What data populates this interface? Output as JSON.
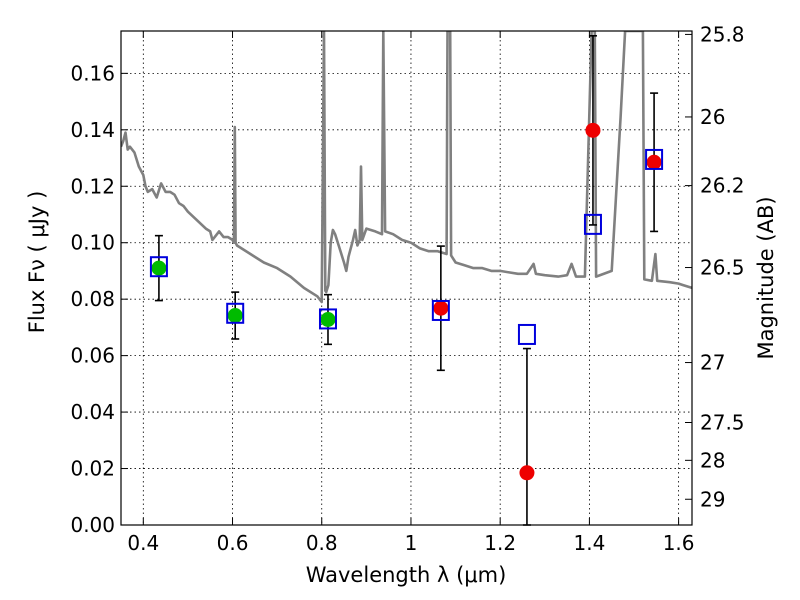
{
  "chart_data": {
    "type": "scatter",
    "xlabel": "Wavelength  λ (μm)",
    "ylabel": "Flux  Fν  ( μJy )",
    "y2label": "Magnitude (AB)",
    "xlim": [
      0.35,
      1.63
    ],
    "ylim": [
      0.0,
      0.175
    ],
    "xticks": [
      0.4,
      0.6,
      0.8,
      1.0,
      1.2,
      1.4,
      1.6
    ],
    "xtick_labels": [
      "0.4",
      "0.6",
      "0.8",
      "1",
      "1.2",
      "1.4",
      "1.6"
    ],
    "yticks": [
      0.0,
      0.02,
      0.04,
      0.06,
      0.08,
      0.1,
      0.12,
      0.14,
      0.16
    ],
    "ytick_labels": [
      "0.00",
      "0.02",
      "0.04",
      "0.06",
      "0.08",
      "0.10",
      "0.12",
      "0.14",
      "0.16"
    ],
    "y2ticks": [
      {
        "label": "25.8",
        "mag": 25.8
      },
      {
        "label": "26",
        "mag": 26.0
      },
      {
        "label": "26.2",
        "mag": 26.2
      },
      {
        "label": "26.5",
        "mag": 26.5
      },
      {
        "label": "27",
        "mag": 27.0
      },
      {
        "label": "27.5",
        "mag": 27.5
      },
      {
        "label": "28",
        "mag": 28.0
      },
      {
        "label": "29",
        "mag": 29.0
      }
    ],
    "grid": true,
    "series": [
      {
        "marker": "circle",
        "color": "#00bb00",
        "points": [
          {
            "x": 0.435,
            "y": 0.091,
            "err": 0.0115
          },
          {
            "x": 0.606,
            "y": 0.0742,
            "err": 0.0083
          },
          {
            "x": 0.814,
            "y": 0.0728,
            "err": 0.0088
          }
        ]
      },
      {
        "marker": "circle",
        "color": "#ee0000",
        "points": [
          {
            "x": 1.067,
            "y": 0.0768,
            "err": 0.022
          },
          {
            "x": 1.26,
            "y": 0.0185,
            "err": 0.044
          },
          {
            "x": 1.408,
            "y": 0.1398,
            "err": 0.0335
          },
          {
            "x": 1.545,
            "y": 0.1285,
            "err": 0.0245
          }
        ]
      },
      {
        "marker": "open-square",
        "color": "#0000dd",
        "points": [
          {
            "x": 0.435,
            "y": 0.0915
          },
          {
            "x": 0.606,
            "y": 0.075
          },
          {
            "x": 0.814,
            "y": 0.073
          },
          {
            "x": 1.067,
            "y": 0.076
          },
          {
            "x": 1.26,
            "y": 0.0675
          },
          {
            "x": 1.408,
            "y": 0.1065
          },
          {
            "x": 1.545,
            "y": 0.1295
          }
        ]
      }
    ],
    "model_spectrum": {
      "color": "#808080",
      "points": [
        [
          0.35,
          0.134
        ],
        [
          0.355,
          0.136
        ],
        [
          0.36,
          0.139
        ],
        [
          0.365,
          0.133
        ],
        [
          0.37,
          0.134
        ],
        [
          0.38,
          0.132
        ],
        [
          0.39,
          0.127
        ],
        [
          0.4,
          0.124
        ],
        [
          0.405,
          0.12
        ],
        [
          0.41,
          0.118
        ],
        [
          0.42,
          0.119
        ],
        [
          0.43,
          0.116
        ],
        [
          0.44,
          0.121
        ],
        [
          0.45,
          0.118
        ],
        [
          0.46,
          0.118
        ],
        [
          0.47,
          0.117
        ],
        [
          0.48,
          0.114
        ],
        [
          0.49,
          0.113
        ],
        [
          0.5,
          0.111
        ],
        [
          0.52,
          0.108
        ],
        [
          0.54,
          0.105
        ],
        [
          0.55,
          0.104
        ],
        [
          0.555,
          0.101
        ],
        [
          0.56,
          0.102
        ],
        [
          0.57,
          0.104
        ],
        [
          0.58,
          0.102
        ],
        [
          0.59,
          0.102
        ],
        [
          0.6,
          0.101
        ],
        [
          0.603,
          0.1
        ],
        [
          0.605,
          0.141
        ],
        [
          0.607,
          0.1
        ],
        [
          0.61,
          0.099
        ],
        [
          0.64,
          0.096
        ],
        [
          0.67,
          0.093
        ],
        [
          0.7,
          0.091
        ],
        [
          0.73,
          0.088
        ],
        [
          0.76,
          0.084
        ],
        [
          0.79,
          0.081
        ],
        [
          0.8,
          0.079
        ],
        [
          0.805,
          0.175
        ],
        [
          0.808,
          0.083
        ],
        [
          0.81,
          0.0825
        ],
        [
          0.815,
          0.085
        ],
        [
          0.82,
          0.1
        ],
        [
          0.825,
          0.1045
        ],
        [
          0.83,
          0.103
        ],
        [
          0.84,
          0.098
        ],
        [
          0.85,
          0.093
        ],
        [
          0.855,
          0.09
        ],
        [
          0.86,
          0.095
        ],
        [
          0.87,
          0.101
        ],
        [
          0.875,
          0.1045
        ],
        [
          0.88,
          0.099
        ],
        [
          0.885,
          0.101
        ],
        [
          0.888,
          0.127
        ],
        [
          0.891,
          0.101
        ],
        [
          0.9,
          0.105
        ],
        [
          0.92,
          0.104
        ],
        [
          0.935,
          0.103
        ],
        [
          0.938,
          0.175
        ],
        [
          0.942,
          0.104
        ],
        [
          0.96,
          0.103
        ],
        [
          0.98,
          0.101
        ],
        [
          1.0,
          0.1
        ],
        [
          1.02,
          0.098
        ],
        [
          1.04,
          0.097
        ],
        [
          1.06,
          0.097
        ],
        [
          1.08,
          0.096
        ],
        [
          1.082,
          0.175
        ],
        [
          1.088,
          0.175
        ],
        [
          1.09,
          0.0955
        ],
        [
          1.1,
          0.093
        ],
        [
          1.12,
          0.092
        ],
        [
          1.14,
          0.091
        ],
        [
          1.16,
          0.091
        ],
        [
          1.18,
          0.09
        ],
        [
          1.2,
          0.09
        ],
        [
          1.22,
          0.0895
        ],
        [
          1.24,
          0.089
        ],
        [
          1.26,
          0.089
        ],
        [
          1.275,
          0.0925
        ],
        [
          1.28,
          0.089
        ],
        [
          1.3,
          0.0885
        ],
        [
          1.33,
          0.088
        ],
        [
          1.35,
          0.0885
        ],
        [
          1.36,
          0.0925
        ],
        [
          1.37,
          0.088
        ],
        [
          1.39,
          0.088
        ],
        [
          1.405,
          0.175
        ],
        [
          1.412,
          0.175
        ],
        [
          1.415,
          0.088
        ],
        [
          1.45,
          0.09
        ],
        [
          1.47,
          0.1445
        ],
        [
          1.48,
          0.175
        ],
        [
          1.52,
          0.175
        ],
        [
          1.523,
          0.087
        ],
        [
          1.54,
          0.0865
        ],
        [
          1.548,
          0.096
        ],
        [
          1.552,
          0.0865
        ],
        [
          1.58,
          0.086
        ],
        [
          1.6,
          0.0855
        ],
        [
          1.61,
          0.085
        ],
        [
          1.63,
          0.084
        ]
      ]
    }
  }
}
